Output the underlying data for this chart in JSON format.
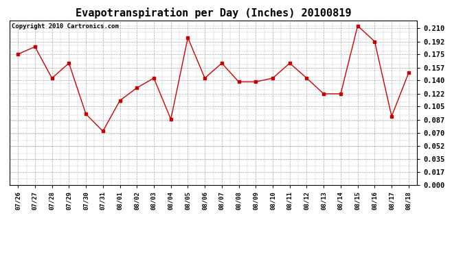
{
  "title": "Evapotranspiration per Day (Inches) 20100819",
  "copyright": "Copyright 2010 Cartronics.com",
  "dates": [
    "07/26",
    "07/27",
    "07/28",
    "07/29",
    "07/30",
    "07/31",
    "08/01",
    "08/02",
    "08/03",
    "08/04",
    "08/05",
    "08/06",
    "08/07",
    "08/08",
    "08/09",
    "08/10",
    "08/11",
    "08/12",
    "08/13",
    "08/14",
    "08/15",
    "08/16",
    "08/17",
    "08/18"
  ],
  "values": [
    0.175,
    0.185,
    0.143,
    0.163,
    0.095,
    0.072,
    0.113,
    0.13,
    0.143,
    0.088,
    0.197,
    0.143,
    0.163,
    0.138,
    0.138,
    0.143,
    0.163,
    0.143,
    0.122,
    0.122,
    0.213,
    0.192,
    0.092,
    0.15
  ],
  "line_color": "#cc0000",
  "marker": "s",
  "marker_size": 2.5,
  "background_color": "#ffffff",
  "plot_bg_color": "#ffffff",
  "grid_color": "#aaaaaa",
  "yticks": [
    0.0,
    0.017,
    0.035,
    0.052,
    0.07,
    0.087,
    0.105,
    0.122,
    0.14,
    0.157,
    0.175,
    0.192,
    0.21
  ],
  "ylim": [
    0.0,
    0.22
  ],
  "title_fontsize": 11,
  "copyright_fontsize": 6.5,
  "tick_fontsize": 7.5,
  "xtick_fontsize": 6.5
}
